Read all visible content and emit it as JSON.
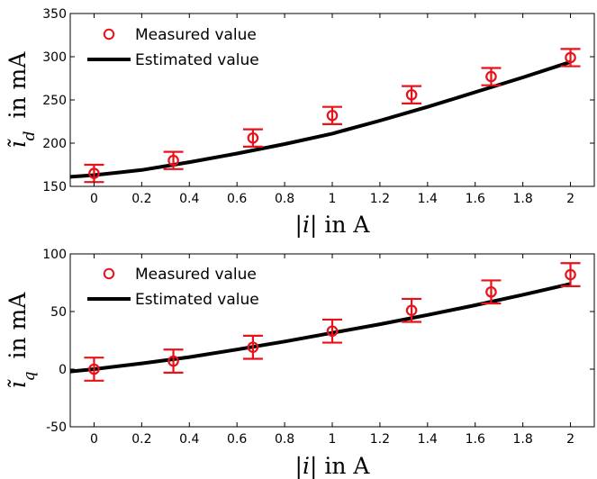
{
  "chart_data": [
    {
      "type": "scatter",
      "xlabel": "|i| in A",
      "ylabel": "ĩ_d in mA",
      "xlim": [
        -0.1,
        2.1
      ],
      "ylim": [
        150,
        350
      ],
      "xticks": [
        0,
        0.2,
        0.4,
        0.6,
        0.8,
        1,
        1.2,
        1.4,
        1.6,
        1.8,
        2
      ],
      "yticks": [
        150,
        200,
        250,
        300,
        350
      ],
      "grid": false,
      "legend_position": "top-left",
      "colors": {
        "measured": "#e8121a",
        "estimated": "#000000"
      },
      "series": [
        {
          "name": "Measured value",
          "kind": "errorbar",
          "x": [
            0,
            0.333,
            0.667,
            1,
            1.333,
            1.667,
            2
          ],
          "y": [
            165,
            180,
            206,
            232,
            256,
            277,
            299
          ],
          "err": [
            10,
            10,
            10,
            10,
            10,
            10,
            10
          ]
        },
        {
          "name": "Estimated value",
          "kind": "line",
          "x": [
            -0.1,
            0,
            0.2,
            0.4,
            0.6,
            0.8,
            1,
            1.2,
            1.4,
            1.6,
            1.8,
            2
          ],
          "y": [
            161,
            163,
            169,
            178,
            188,
            199,
            211,
            226,
            242,
            259,
            276,
            294
          ]
        }
      ]
    },
    {
      "type": "scatter",
      "xlabel": "|i| in A",
      "ylabel": "ĩ_q in mA",
      "xlim": [
        -0.1,
        2.1
      ],
      "ylim": [
        -50,
        100
      ],
      "xticks": [
        0,
        0.2,
        0.4,
        0.6,
        0.8,
        1,
        1.2,
        1.4,
        1.6,
        1.8,
        2
      ],
      "yticks": [
        -50,
        0,
        50,
        100
      ],
      "grid": false,
      "legend_position": "top-left",
      "colors": {
        "measured": "#e8121a",
        "estimated": "#000000"
      },
      "series": [
        {
          "name": "Measured value",
          "kind": "errorbar",
          "x": [
            0,
            0.333,
            0.667,
            1,
            1.333,
            1.667,
            2
          ],
          "y": [
            0,
            7,
            19,
            33,
            51,
            67,
            82
          ],
          "err": [
            10,
            10,
            10,
            10,
            10,
            10,
            10
          ]
        },
        {
          "name": "Estimated value",
          "kind": "line",
          "x": [
            -0.1,
            0,
            0.2,
            0.4,
            0.6,
            0.8,
            1,
            1.2,
            1.4,
            1.6,
            1.8,
            2
          ],
          "y": [
            -2,
            0,
            5,
            10.5,
            17,
            24,
            31.5,
            39,
            47,
            55.5,
            64.5,
            74
          ]
        }
      ]
    }
  ]
}
